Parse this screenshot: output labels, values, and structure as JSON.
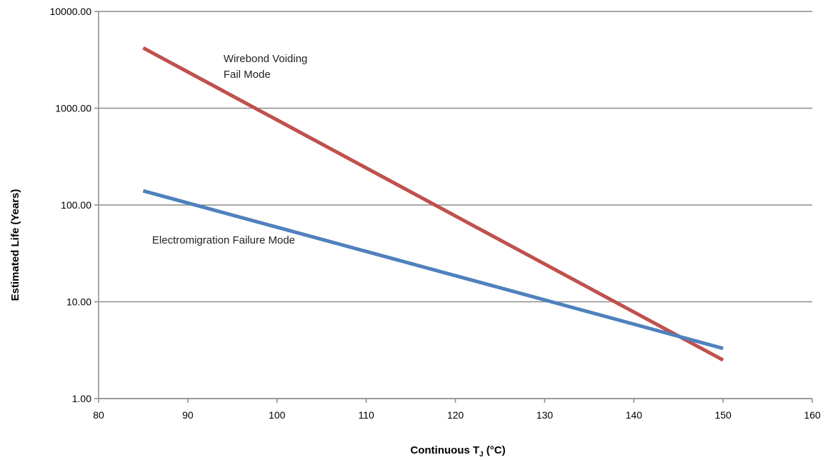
{
  "chart_data": {
    "type": "line",
    "xlabel_main": "Continuous T",
    "xlabel_sub": "J",
    "xlabel_unit": " (°C)",
    "ylabel": "Estimated Life (Years)",
    "xlim": [
      80,
      160
    ],
    "x_ticks": [
      "80",
      "90",
      "100",
      "110",
      "120",
      "130",
      "140",
      "150",
      "160"
    ],
    "ylim": [
      1,
      10000
    ],
    "y_scale": "log",
    "y_ticks": [
      "1.00",
      "10.00",
      "100.00",
      "1000.00",
      "10000.00"
    ],
    "grid": "horizontal",
    "series": [
      {
        "id": "wirebond",
        "color": "#c0504d",
        "x": [
          85,
          150
        ],
        "y": [
          4200,
          2.5
        ]
      },
      {
        "id": "electromigration",
        "color": "#4f81bd",
        "x": [
          85,
          150
        ],
        "y": [
          140,
          3.3
        ]
      }
    ],
    "annotations": [
      {
        "id": "wirebond",
        "lines": [
          "Wirebond Voiding",
          "Fail Mode"
        ],
        "x": 94,
        "y": 3000
      },
      {
        "id": "electromigration",
        "lines": [
          "Electromigration Failure Mode"
        ],
        "x": 86,
        "y": 40
      }
    ]
  }
}
